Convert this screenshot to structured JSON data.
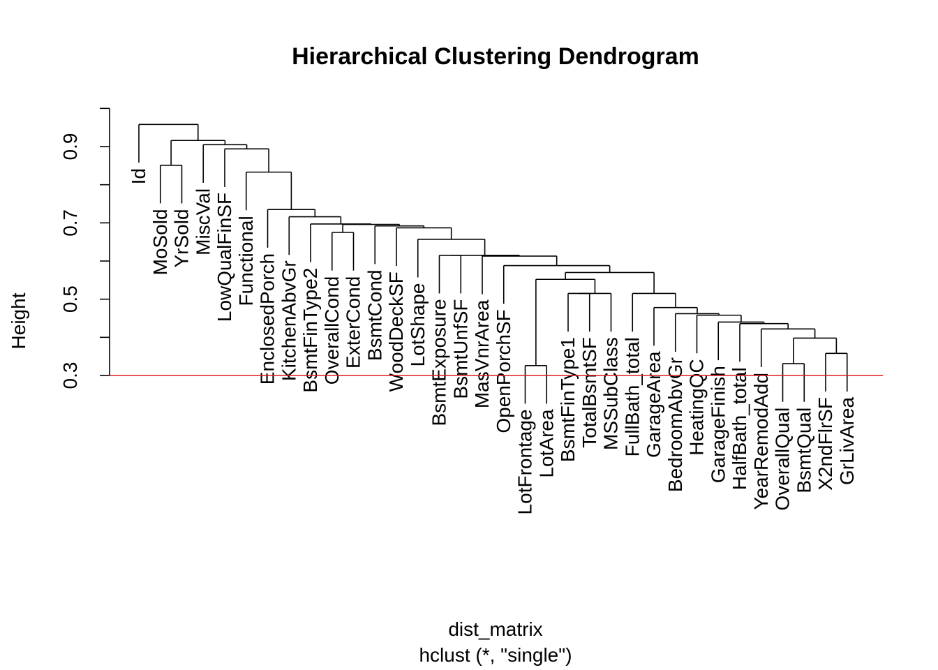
{
  "chart_data": {
    "type": "dendrogram",
    "title": "Hierarchical Clustering Dendrogram",
    "xlabel": "dist_matrix",
    "sub": "hclust (*, \"single\")",
    "ylabel": "Height",
    "ylim": [
      0.3,
      1.0
    ],
    "yticks": [
      0.3,
      0.5,
      0.7,
      0.9
    ],
    "ytick_labels": [
      "0.3",
      "0.5",
      "0.7",
      "0.9"
    ],
    "cut_height": 0.3,
    "cut_color": "#e41a1c",
    "leaf_hang": 0.1,
    "leaves": [
      "Id",
      "MoSold",
      "YrSold",
      "MiscVal",
      "LowQualFinSF",
      "Functional",
      "EnclosedPorch",
      "KitchenAbvGr",
      "BsmtFinType2",
      "OverallCond",
      "ExterCond",
      "BsmtCond",
      "WoodDeckSF",
      "LotShape",
      "BsmtExposure",
      "BsmtUnfSF",
      "MasVnrArea",
      "OpenPorchSF",
      "LotFrontage",
      "LotArea",
      "BsmtFinType1",
      "TotalBsmtSF",
      "MSSubClass",
      "FullBath_total",
      "GarageArea",
      "BedroomAbvGr",
      "HeatingQC",
      "GarageFinish",
      "HalfBath_total",
      "YearRemodAdd",
      "OverallQual",
      "BsmtQual",
      "X2ndFlrSF",
      "GrLivArea"
    ],
    "merges": [
      [
        -19,
        -20,
        0.326
      ],
      [
        -31,
        -32,
        0.331
      ],
      [
        -33,
        -34,
        0.358
      ],
      [
        2,
        3,
        0.398
      ],
      [
        -30,
        4,
        0.422
      ],
      [
        -29,
        5,
        0.436
      ],
      [
        -28,
        6,
        0.44
      ],
      [
        -27,
        7,
        0.458
      ],
      [
        -26,
        8,
        0.462
      ],
      [
        -25,
        9,
        0.478
      ],
      [
        -24,
        10,
        0.515
      ],
      [
        -21,
        -22,
        0.515
      ],
      [
        -23,
        12,
        0.515
      ],
      [
        1,
        13,
        0.552
      ],
      [
        11,
        14,
        0.57
      ],
      [
        -18,
        15,
        0.588
      ],
      [
        -17,
        16,
        0.613
      ],
      [
        -15,
        -16,
        0.615
      ],
      [
        17,
        18,
        0.615
      ],
      [
        -14,
        19,
        0.657
      ],
      [
        -13,
        20,
        0.687
      ],
      [
        -12,
        21,
        0.692
      ],
      [
        -10,
        -11,
        0.675
      ],
      [
        23,
        22,
        0.696
      ],
      [
        -9,
        24,
        0.697
      ],
      [
        -8,
        25,
        0.716
      ],
      [
        -7,
        26,
        0.735
      ],
      [
        -6,
        27,
        0.833
      ],
      [
        -5,
        28,
        0.894
      ],
      [
        -4,
        29,
        0.905
      ],
      [
        -2,
        -3,
        0.851
      ],
      [
        31,
        30,
        0.916
      ],
      [
        -1,
        32,
        0.958
      ]
    ]
  }
}
